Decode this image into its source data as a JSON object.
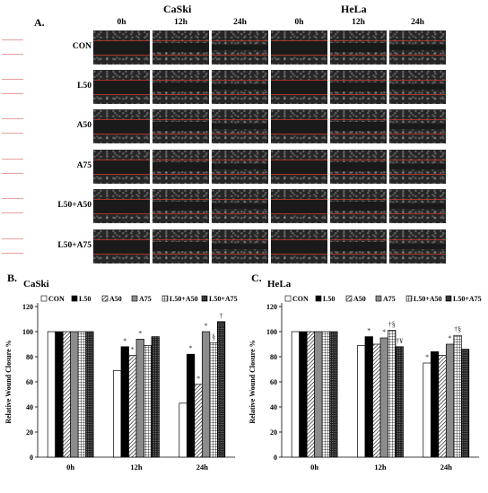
{
  "panelA": {
    "label": "A.",
    "groups": [
      "CaSki",
      "HeLa"
    ],
    "times": [
      "0h",
      "12h",
      "24h"
    ],
    "rows": [
      "CON",
      "L50",
      "A50",
      "A75",
      "L50+A50",
      "L50+A75"
    ]
  },
  "chart_data": [
    {
      "type": "bar",
      "panel_label": "B.",
      "title": "CaSki",
      "ylabel": "Relative Wound Closure %",
      "categories": [
        "0h",
        "12h",
        "24h"
      ],
      "ylim": [
        0,
        120
      ],
      "yticks": [
        "0",
        "20",
        "40",
        "60",
        "80",
        "100",
        "120"
      ],
      "legend": [
        "CON",
        "L50",
        "A50",
        "A75",
        "L50+A50",
        "L50+A75"
      ],
      "series": [
        {
          "name": "CON",
          "values": [
            100,
            69,
            43
          ]
        },
        {
          "name": "L50",
          "values": [
            100,
            88,
            82
          ]
        },
        {
          "name": "A50",
          "values": [
            100,
            81,
            58
          ]
        },
        {
          "name": "A75",
          "values": [
            100,
            94,
            100
          ]
        },
        {
          "name": "L50+A50",
          "values": [
            100,
            89,
            91
          ]
        },
        {
          "name": "L50+A75",
          "values": [
            100,
            96,
            108
          ]
        }
      ],
      "annotations": [
        {
          "category": "12h",
          "series": "L50",
          "text": "*"
        },
        {
          "category": "12h",
          "series": "A50",
          "text": "*"
        },
        {
          "category": "12h",
          "series": "A75",
          "text": "*"
        },
        {
          "category": "24h",
          "series": "L50",
          "text": "*"
        },
        {
          "category": "24h",
          "series": "A50",
          "text": "*"
        },
        {
          "category": "24h",
          "series": "A75",
          "text": "*"
        },
        {
          "category": "24h",
          "series": "L50+A50",
          "text": "§"
        },
        {
          "category": "24h",
          "series": "L50+A75",
          "text": "†"
        }
      ]
    },
    {
      "type": "bar",
      "panel_label": "C.",
      "title": "HeLa",
      "ylabel": "Relative Wound Closure %",
      "categories": [
        "0h",
        "12h",
        "24h"
      ],
      "ylim": [
        0,
        120
      ],
      "yticks": [
        "0",
        "20",
        "40",
        "60",
        "80",
        "100",
        "120"
      ],
      "legend": [
        "CON",
        "L50",
        "A50",
        "A75",
        "L50+A50",
        "L50+A75"
      ],
      "series": [
        {
          "name": "CON",
          "values": [
            100,
            89,
            75
          ]
        },
        {
          "name": "L50",
          "values": [
            100,
            96,
            84
          ]
        },
        {
          "name": "A50",
          "values": [
            100,
            90,
            81
          ]
        },
        {
          "name": "A75",
          "values": [
            100,
            95,
            90
          ]
        },
        {
          "name": "L50+A50",
          "values": [
            100,
            101,
            97
          ]
        },
        {
          "name": "L50+A75",
          "values": [
            100,
            88,
            86
          ]
        }
      ],
      "annotations": [
        {
          "category": "12h",
          "series": "L50",
          "text": "*"
        },
        {
          "category": "12h",
          "series": "A75",
          "text": "*"
        },
        {
          "category": "12h",
          "series": "L50+A50",
          "text": "†§"
        },
        {
          "category": "12h",
          "series": "L50+A75",
          "text": "†¥"
        },
        {
          "category": "24h",
          "series": "CON",
          "text": "*"
        },
        {
          "category": "24h",
          "series": "A75",
          "text": "*"
        },
        {
          "category": "24h",
          "series": "L50+A50",
          "text": "†§"
        }
      ]
    }
  ]
}
